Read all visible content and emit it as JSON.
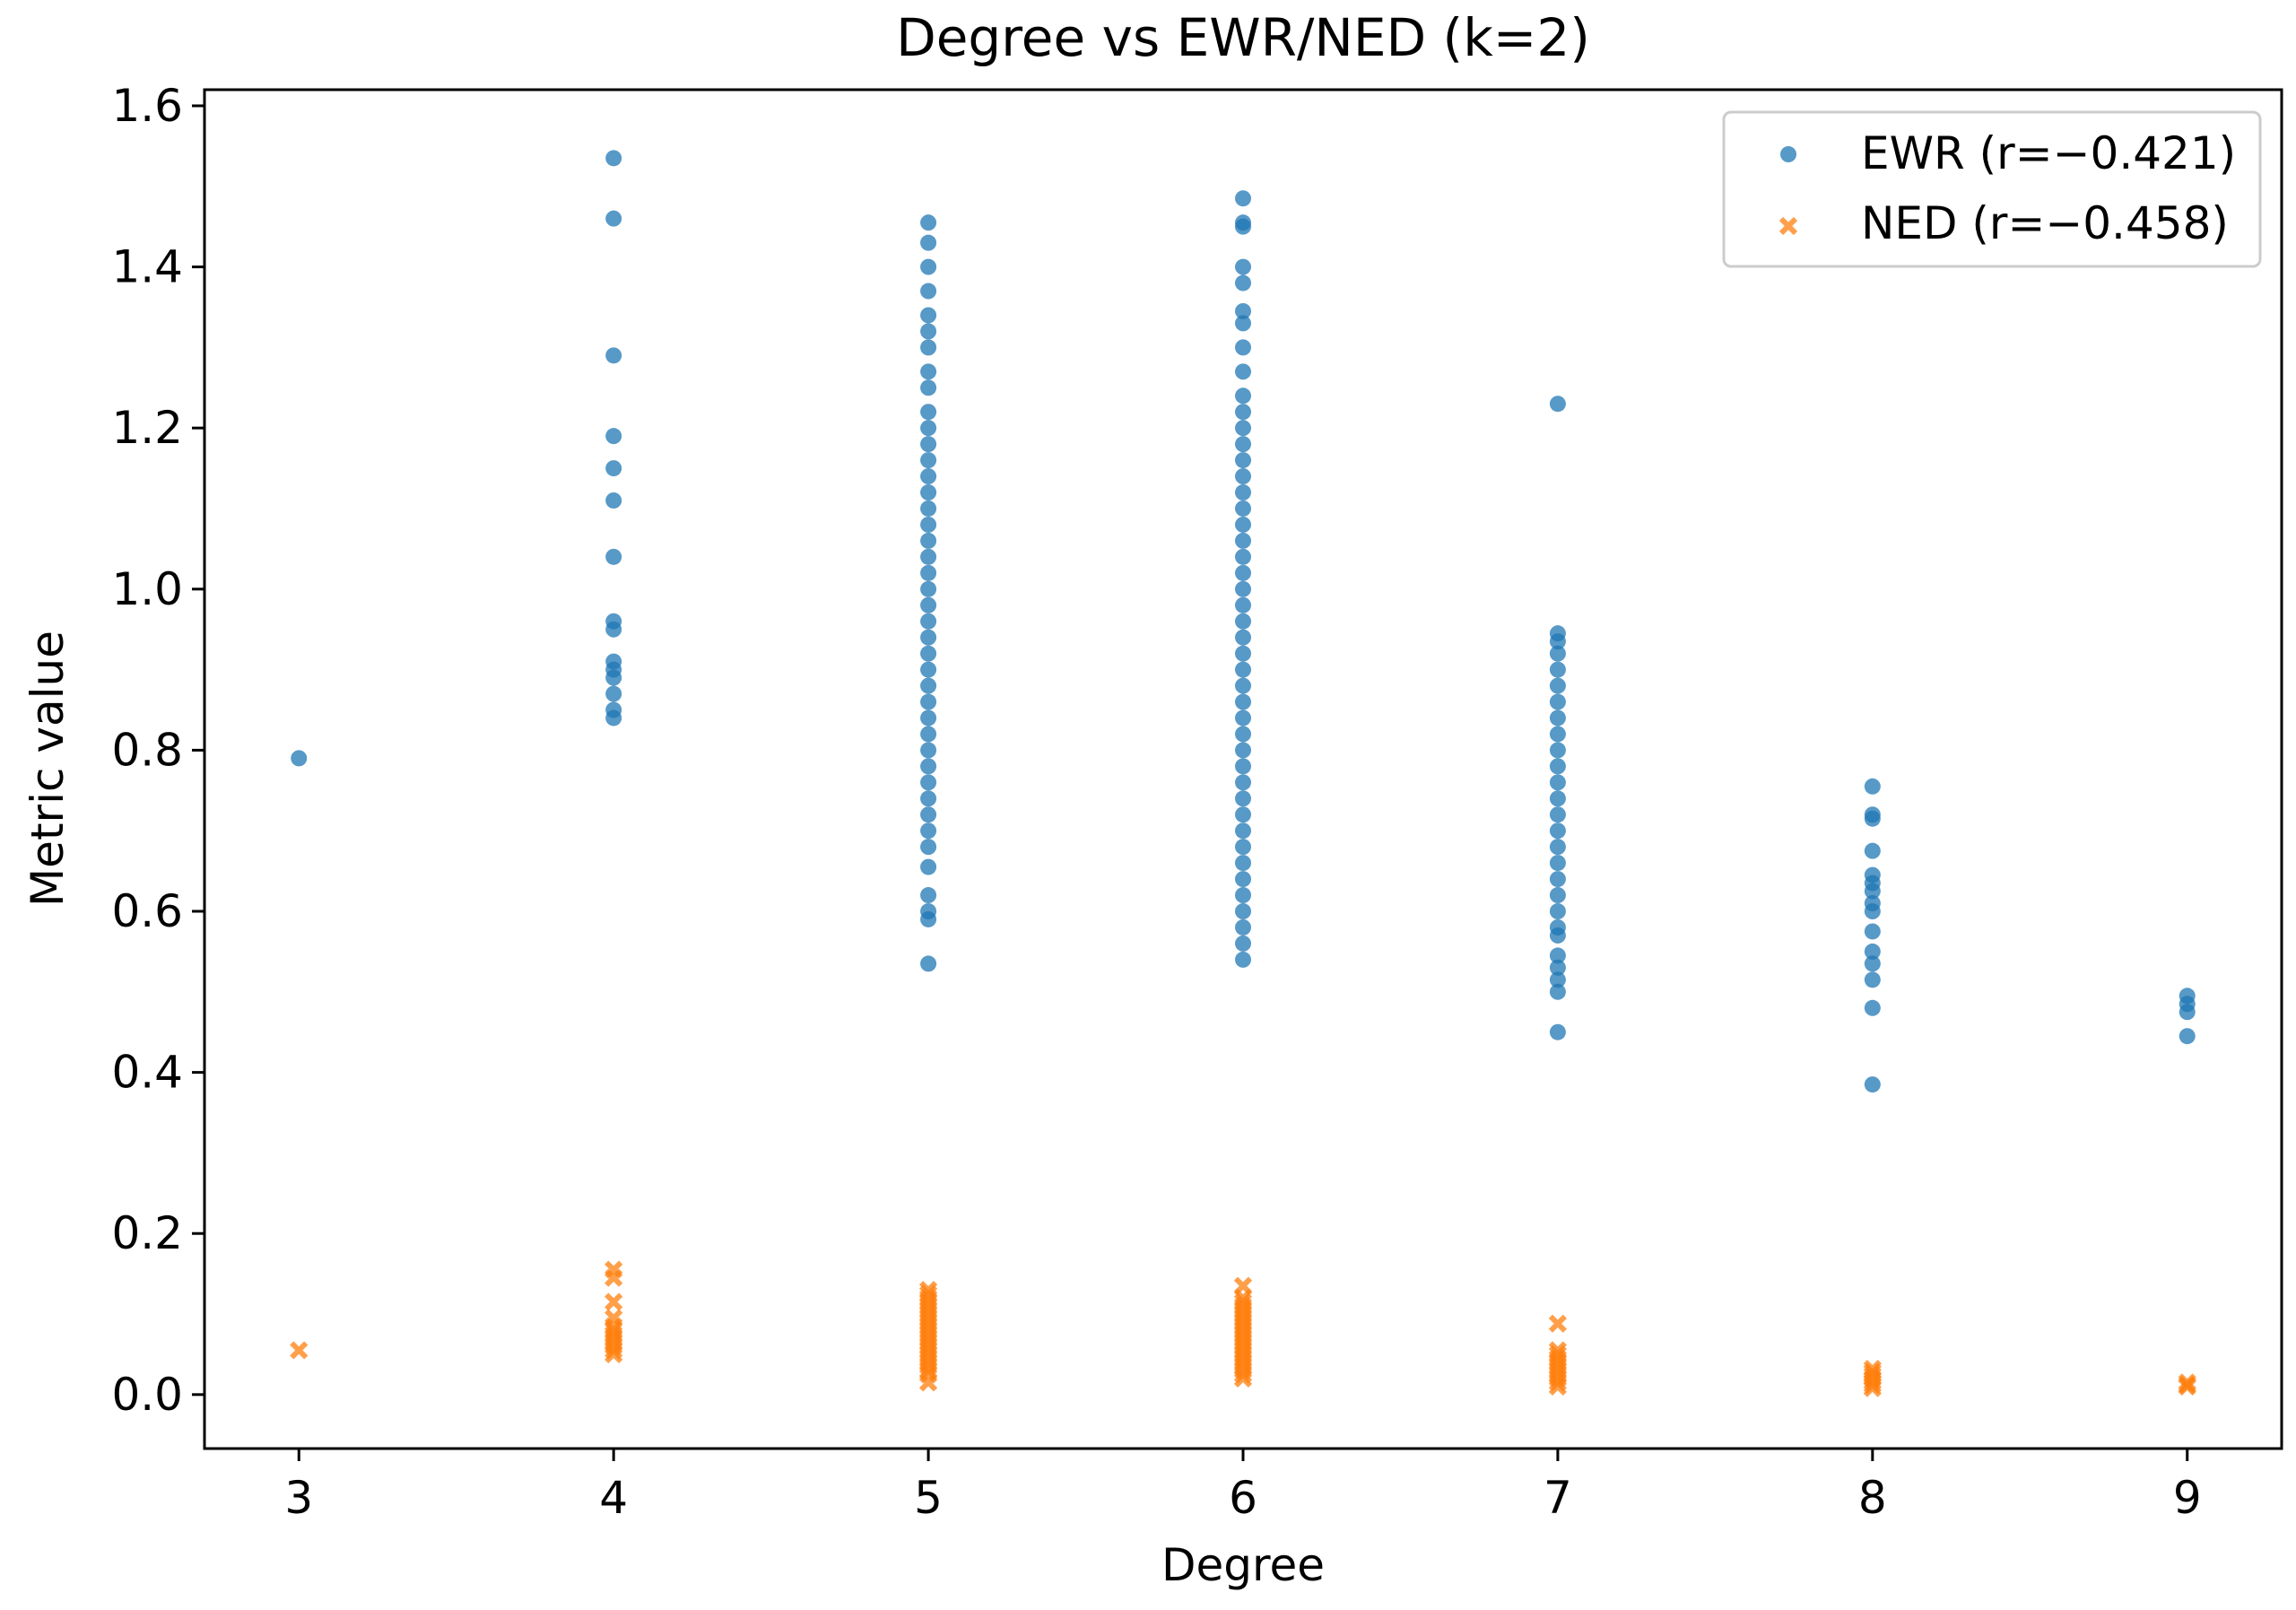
{
  "chart_data": {
    "type": "scatter",
    "title": "Degree vs EWR/NED (k=2)",
    "xlabel": "Degree",
    "ylabel": "Metric value",
    "xlim": [
      2.7,
      9.3
    ],
    "ylim": [
      -0.067,
      1.62
    ],
    "xticks": [
      3,
      4,
      5,
      6,
      7,
      8,
      9
    ],
    "yticks": [
      0.0,
      0.2,
      0.4,
      0.6,
      0.8,
      1.0,
      1.2,
      1.4,
      1.6
    ],
    "ytick_labels": [
      "0.0",
      "0.2",
      "0.4",
      "0.6",
      "0.8",
      "1.0",
      "1.2",
      "1.4",
      "1.6"
    ],
    "xtick_labels": [
      "3",
      "4",
      "5",
      "6",
      "7",
      "8",
      "9"
    ],
    "grid": false,
    "legend_position": "top-right",
    "series": [
      {
        "name": "EWR (r=−0.421)",
        "marker": "circle",
        "color": "#1f77b4",
        "points": [
          {
            "x": 3,
            "ys": [
              0.79
            ]
          },
          {
            "x": 4,
            "ys": [
              0.84,
              0.85,
              0.87,
              0.89,
              0.9,
              0.91,
              0.95,
              0.96,
              1.04,
              1.11,
              1.15,
              1.19,
              1.29,
              1.46,
              1.535
            ]
          },
          {
            "x": 5,
            "ys": [
              0.535,
              0.59,
              0.6,
              0.62,
              0.655,
              0.68,
              0.7,
              0.72,
              0.74,
              0.76,
              0.78,
              0.8,
              0.82,
              0.84,
              0.86,
              0.88,
              0.9,
              0.92,
              0.94,
              0.96,
              0.98,
              1.0,
              1.02,
              1.04,
              1.06,
              1.08,
              1.1,
              1.12,
              1.14,
              1.16,
              1.18,
              1.2,
              1.22,
              1.25,
              1.27,
              1.3,
              1.32,
              1.34,
              1.37,
              1.4,
              1.43,
              1.455
            ]
          },
          {
            "x": 6,
            "ys": [
              0.54,
              0.56,
              0.58,
              0.6,
              0.62,
              0.64,
              0.66,
              0.68,
              0.7,
              0.72,
              0.74,
              0.76,
              0.78,
              0.8,
              0.82,
              0.84,
              0.86,
              0.88,
              0.9,
              0.92,
              0.94,
              0.96,
              0.98,
              1.0,
              1.02,
              1.04,
              1.06,
              1.08,
              1.1,
              1.12,
              1.14,
              1.16,
              1.18,
              1.2,
              1.22,
              1.24,
              1.27,
              1.3,
              1.33,
              1.345,
              1.38,
              1.4,
              1.45,
              1.455,
              1.485
            ]
          },
          {
            "x": 7,
            "ys": [
              0.45,
              0.5,
              0.515,
              0.53,
              0.545,
              0.57,
              0.58,
              0.6,
              0.62,
              0.64,
              0.66,
              0.68,
              0.7,
              0.72,
              0.74,
              0.76,
              0.78,
              0.8,
              0.82,
              0.84,
              0.86,
              0.88,
              0.9,
              0.92,
              0.935,
              0.945,
              1.23
            ]
          },
          {
            "x": 8,
            "ys": [
              0.385,
              0.48,
              0.515,
              0.535,
              0.55,
              0.575,
              0.6,
              0.61,
              0.625,
              0.635,
              0.645,
              0.675,
              0.715,
              0.72,
              0.755
            ]
          },
          {
            "x": 9,
            "ys": [
              0.445,
              0.475,
              0.485,
              0.495
            ]
          }
        ]
      },
      {
        "name": "NED (r=−0.458)",
        "marker": "x",
        "color": "#ff7f0e",
        "points": [
          {
            "x": 3,
            "ys": [
              0.055
            ]
          },
          {
            "x": 4,
            "ys": [
              0.05,
              0.055,
              0.06,
              0.065,
              0.07,
              0.075,
              0.08,
              0.085,
              0.095,
              0.115,
              0.145,
              0.155
            ]
          },
          {
            "x": 5,
            "ys": [
              0.015,
              0.025,
              0.03,
              0.035,
              0.04,
              0.045,
              0.05,
              0.055,
              0.06,
              0.065,
              0.07,
              0.075,
              0.08,
              0.085,
              0.09,
              0.095,
              0.1,
              0.105,
              0.11,
              0.115,
              0.12,
              0.125,
              0.13
            ]
          },
          {
            "x": 6,
            "ys": [
              0.02,
              0.025,
              0.03,
              0.035,
              0.04,
              0.045,
              0.05,
              0.055,
              0.06,
              0.065,
              0.07,
              0.075,
              0.08,
              0.085,
              0.09,
              0.095,
              0.1,
              0.105,
              0.11,
              0.115,
              0.12,
              0.135
            ]
          },
          {
            "x": 7,
            "ys": [
              0.01,
              0.015,
              0.02,
              0.025,
              0.03,
              0.035,
              0.04,
              0.045,
              0.05,
              0.055,
              0.088
            ]
          },
          {
            "x": 8,
            "ys": [
              0.008,
              0.012,
              0.016,
              0.02,
              0.024,
              0.028,
              0.032
            ]
          },
          {
            "x": 9,
            "ys": [
              0.01,
              0.012,
              0.015
            ]
          }
        ]
      }
    ]
  }
}
